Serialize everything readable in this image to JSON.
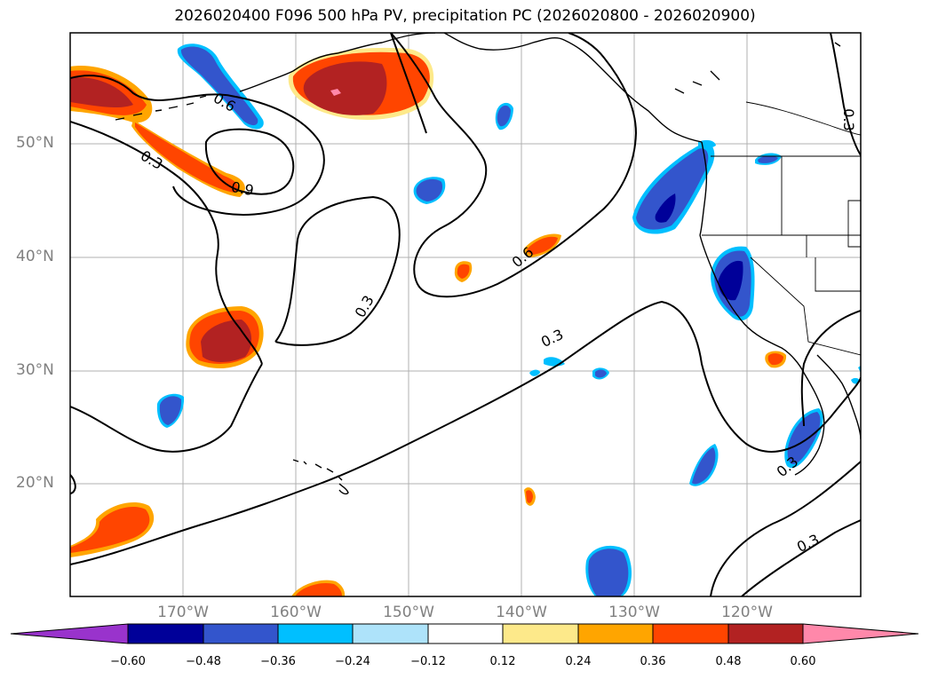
{
  "title": "2026020400 F096 500 hPa PV, precipitation PC (2026020800 - 2026020900)",
  "lat_labels": [
    "50°N",
    "40°N",
    "30°N",
    "20°N"
  ],
  "lon_labels": [
    "170°W",
    "160°W",
    "150°W",
    "140°W",
    "130°W",
    "120°W"
  ],
  "contour_labels": [
    "0.6",
    "0.3",
    "0.9",
    "0.3",
    "0.6",
    "0.3",
    "0.3",
    "0.3",
    "0.3",
    "0.3"
  ],
  "colorbar": {
    "ticks": [
      "−0.60",
      "−0.48",
      "−0.36",
      "−0.24",
      "−0.12",
      "0.12",
      "0.24",
      "0.36",
      "0.48",
      "0.60"
    ],
    "colors": [
      "#9933cc",
      "#000099",
      "#3355cc",
      "#00bfff",
      "#aee3fa",
      "#ffffff",
      "#fde98a",
      "#ffa500",
      "#ff4500",
      "#b22222",
      "#ff88aa"
    ]
  },
  "map_extent": {
    "lon": [
      -180,
      -110
    ],
    "lat": [
      10,
      60
    ]
  }
}
